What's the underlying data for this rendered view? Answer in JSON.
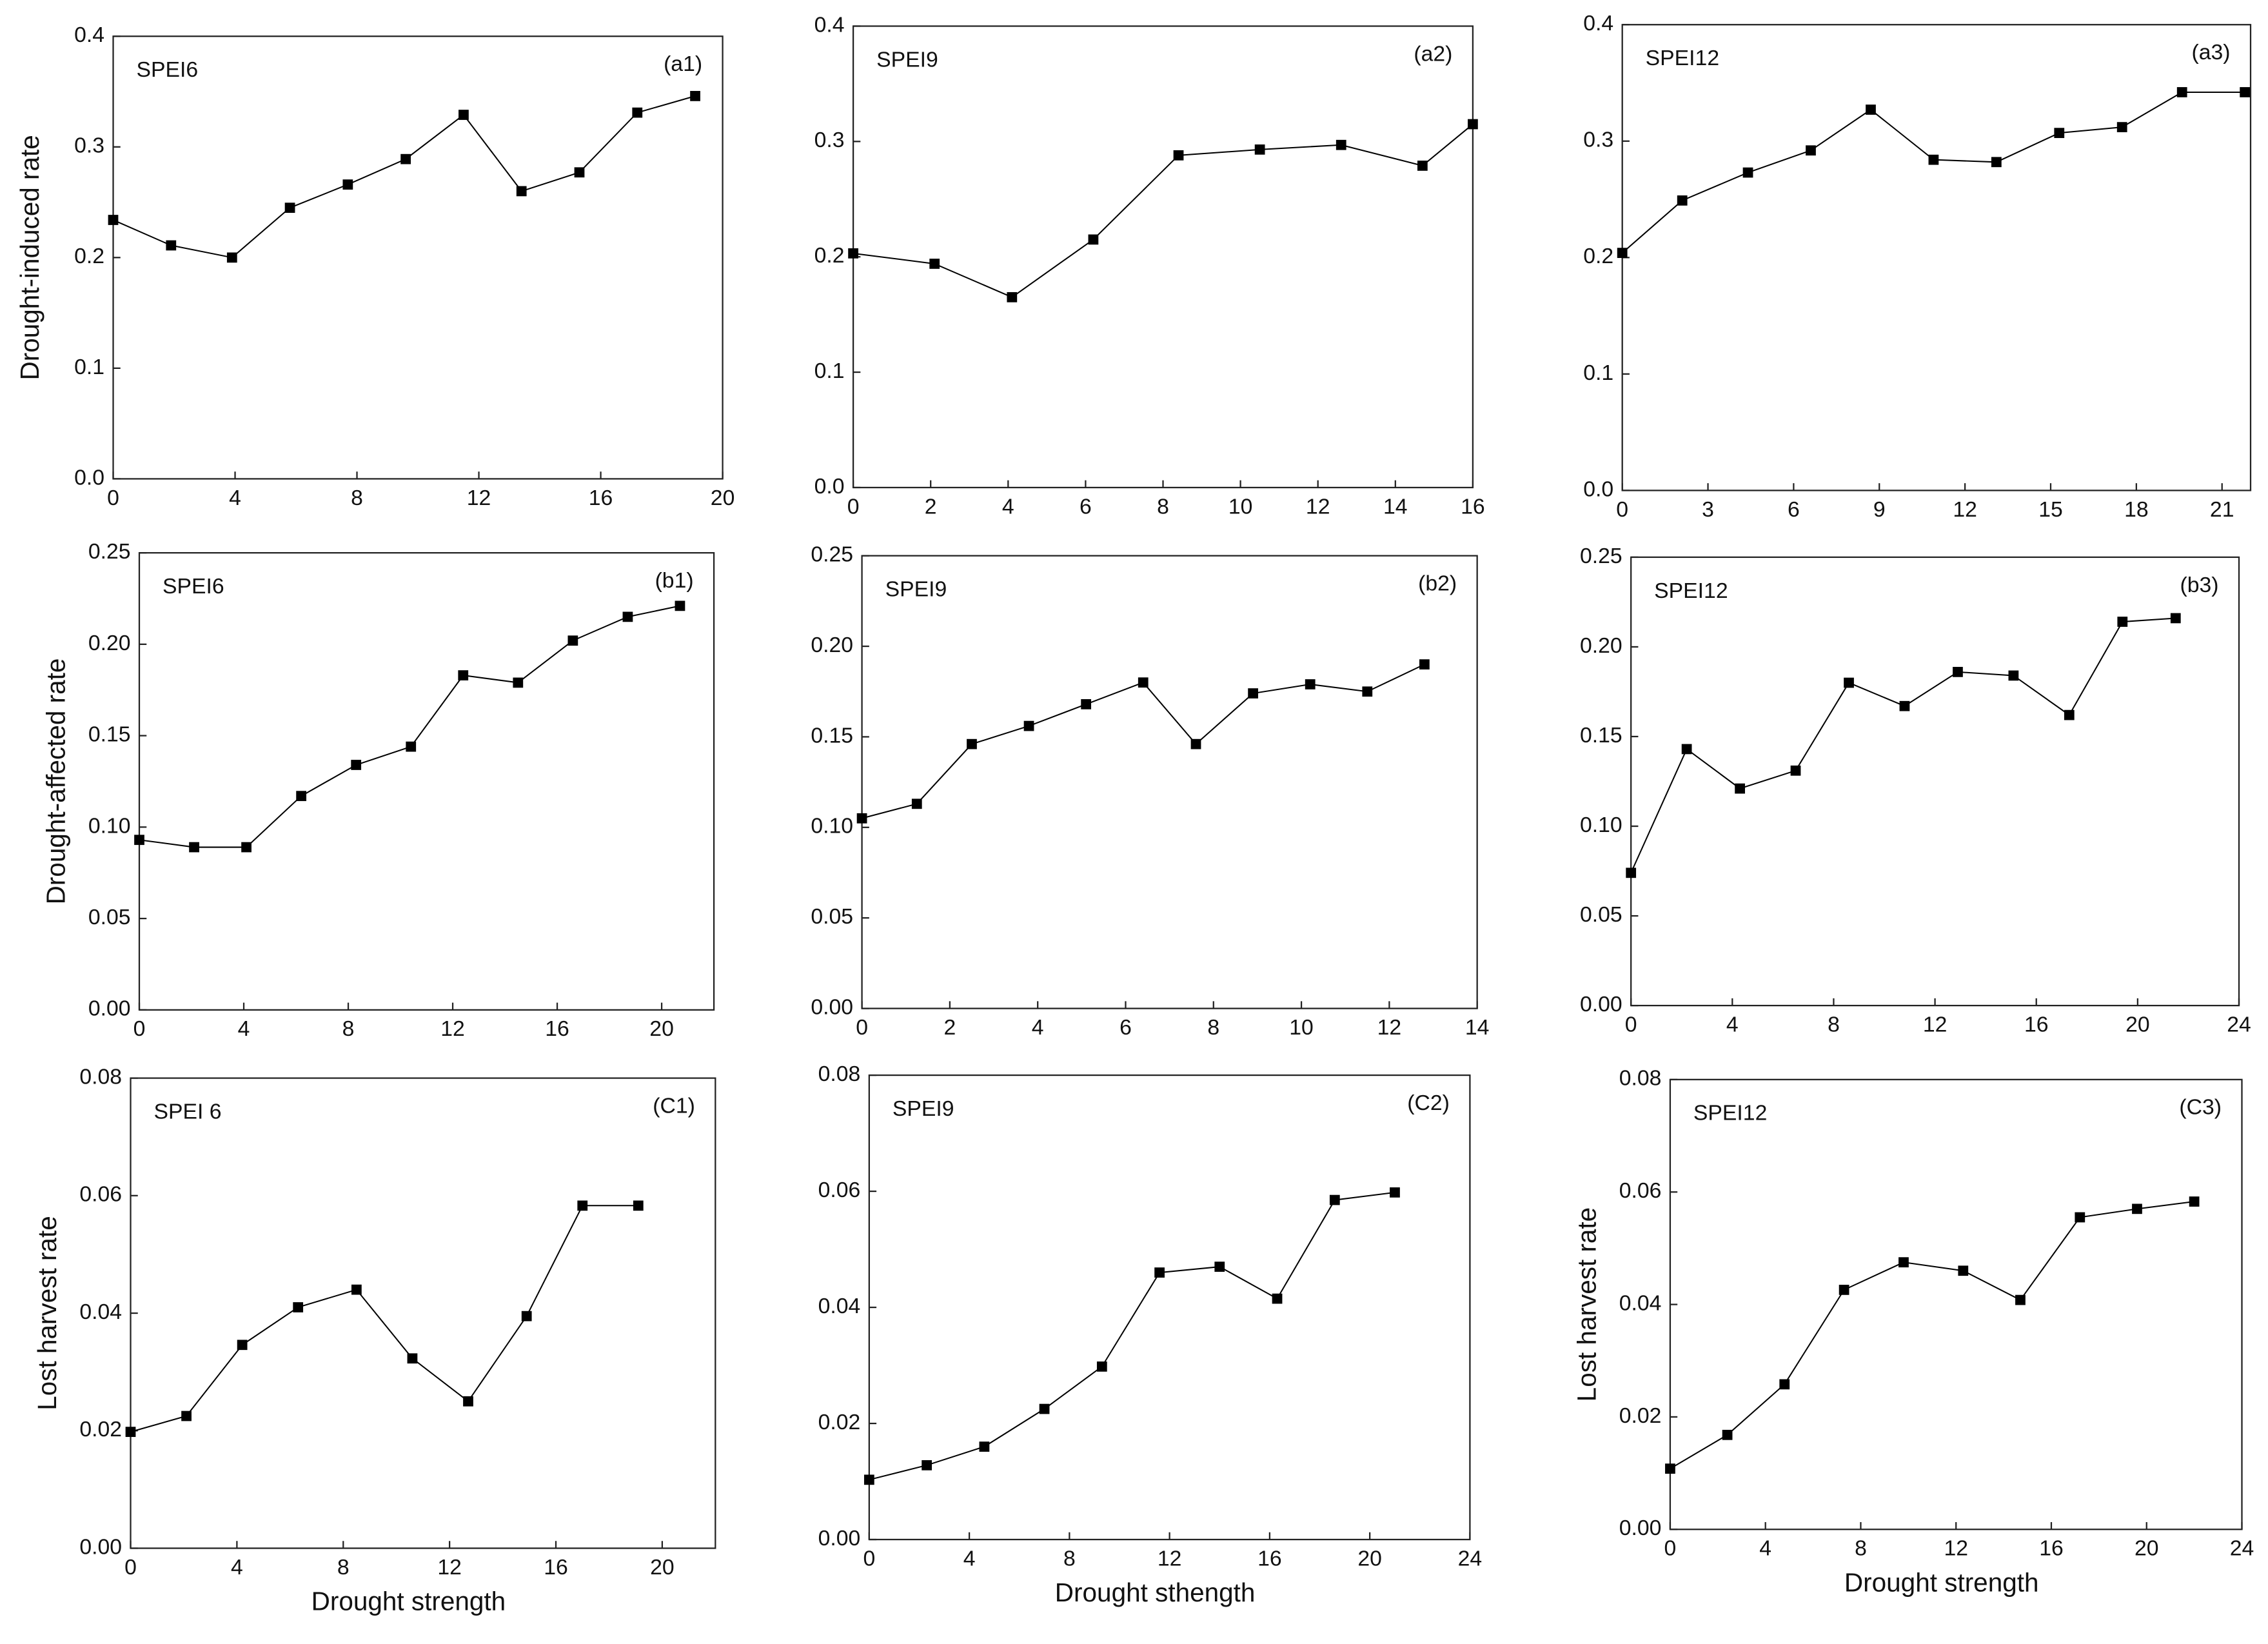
{
  "chart_data": [
    {
      "type": "line",
      "series_label": "SPEI6",
      "panel_label": "(a1)",
      "y_label": "Drought-induced rate",
      "x": [
        0,
        1.9,
        3.9,
        5.8,
        7.7,
        9.6,
        11.5,
        13.4,
        15.3,
        17.2,
        19.1
      ],
      "values": [
        0.234,
        0.211,
        0.2,
        0.245,
        0.266,
        0.289,
        0.329,
        0.26,
        0.277,
        0.331,
        0.346
      ],
      "color": "#000000",
      "xlim": [
        0,
        20
      ],
      "xticks": [
        0,
        4,
        8,
        12,
        16,
        20
      ],
      "ylim": [
        0,
        0.4
      ],
      "yticks": [
        {
          "value": 0,
          "label": "0.0"
        },
        0.1,
        0.2,
        0.3,
        0.4
      ]
    },
    {
      "type": "line",
      "series_label": "SPEI9",
      "panel_label": "(a2)",
      "x": [
        0,
        2.1,
        4.1,
        6.2,
        8.4,
        10.5,
        12.6,
        14.7,
        16
      ],
      "values": [
        0.203,
        0.194,
        0.165,
        0.215,
        0.288,
        0.293,
        0.297,
        0.279,
        0.315
      ],
      "color": "#000000",
      "xlim": [
        0,
        16
      ],
      "xticks": [
        0,
        2,
        4,
        6,
        8,
        10,
        12,
        14,
        16
      ],
      "ylim": [
        0,
        0.4
      ],
      "yticks": [
        {
          "value": 0,
          "label": "0.0"
        },
        0.1,
        0.2,
        0.3,
        0.4
      ]
    },
    {
      "type": "line",
      "series_label": "SPEI12",
      "panel_label": "(a3)",
      "x": [
        0,
        2.1,
        4.4,
        6.6,
        8.7,
        10.9,
        13.1,
        15.3,
        17.5,
        19.6,
        21.8
      ],
      "values": [
        0.204,
        0.249,
        0.273,
        0.292,
        0.327,
        0.284,
        0.282,
        0.307,
        0.312,
        0.342,
        0.342
      ],
      "color": "#000000",
      "xlim": [
        0,
        22
      ],
      "xticks": [
        0,
        3,
        6,
        9,
        12,
        15,
        18,
        21
      ],
      "ylim": [
        0,
        0.4
      ],
      "yticks": [
        {
          "value": 0,
          "label": "0.0"
        },
        0.1,
        0.2,
        0.3,
        0.4
      ]
    },
    {
      "type": "line",
      "series_label": "SPEI6",
      "panel_label": "(b1)",
      "y_label": "Drought-affected rate",
      "x": [
        0,
        2.1,
        4.1,
        6.2,
        8.3,
        10.4,
        12.4,
        14.5,
        16.6,
        18.7,
        20.7
      ],
      "values": [
        0.093,
        0.089,
        0.089,
        0.117,
        0.134,
        0.144,
        0.183,
        0.179,
        0.202,
        0.215,
        0.221
      ],
      "color": "#000000",
      "xlim": [
        0,
        22
      ],
      "xticks": [
        0,
        4,
        8,
        12,
        16,
        20
      ],
      "ylim": [
        0,
        0.25
      ],
      "yticks": [
        {
          "value": 0,
          "label": "0.00"
        },
        0.05,
        {
          "value": 0.1,
          "label": "0.10"
        },
        0.15,
        {
          "value": 0.2,
          "label": "0.20"
        },
        0.25
      ]
    },
    {
      "type": "line",
      "series_label": "SPEI9",
      "panel_label": "(b2)",
      "x": [
        0,
        1.25,
        2.5,
        3.8,
        5.1,
        6.4,
        7.6,
        8.9,
        10.2,
        11.5,
        12.8
      ],
      "values": [
        0.105,
        0.113,
        0.146,
        0.156,
        0.168,
        0.18,
        0.146,
        0.174,
        0.179,
        0.175,
        0.19
      ],
      "color": "#000000",
      "xlim": [
        0,
        14
      ],
      "xticks": [
        0,
        2,
        4,
        6,
        8,
        10,
        12,
        14
      ],
      "ylim": [
        0,
        0.25
      ],
      "yticks": [
        {
          "value": 0,
          "label": "0.00"
        },
        0.05,
        {
          "value": 0.1,
          "label": "0.10"
        },
        0.15,
        {
          "value": 0.2,
          "label": "0.20"
        },
        0.25
      ]
    },
    {
      "type": "line",
      "series_label": "SPEI12",
      "panel_label": "(b3)",
      "x": [
        0,
        2.2,
        4.3,
        6.5,
        8.6,
        10.8,
        12.9,
        15.1,
        17.3,
        19.4,
        21.5
      ],
      "values": [
        0.074,
        0.143,
        0.121,
        0.131,
        0.18,
        0.167,
        0.186,
        0.184,
        0.162,
        0.214,
        0.216
      ],
      "color": "#000000",
      "xlim": [
        0,
        24
      ],
      "xticks": [
        0,
        4,
        8,
        12,
        16,
        20,
        24
      ],
      "ylim": [
        0,
        0.25
      ],
      "yticks": [
        {
          "value": 0,
          "label": "0.00"
        },
        0.05,
        {
          "value": 0.1,
          "label": "0.10"
        },
        0.15,
        {
          "value": 0.2,
          "label": "0.20"
        },
        0.25
      ]
    },
    {
      "type": "line",
      "series_label": "SPEI 6",
      "panel_label": "(C1)",
      "y_label": "Lost harvest rate",
      "x_label": "Drought strength",
      "x": [
        0,
        2.1,
        4.2,
        6.3,
        8.5,
        10.6,
        12.7,
        14.9,
        17,
        19.1
      ],
      "values": [
        0.0198,
        0.0225,
        0.0346,
        0.041,
        0.044,
        0.0323,
        0.025,
        0.0395,
        0.0583,
        0.0583
      ],
      "color": "#000000",
      "xlim": [
        0,
        22
      ],
      "xticks": [
        0,
        4,
        8,
        12,
        16,
        20
      ],
      "ylim": [
        0,
        0.08
      ],
      "yticks": [
        {
          "value": 0,
          "label": "0.00"
        },
        0.02,
        0.04,
        0.06,
        0.08
      ]
    },
    {
      "type": "line",
      "series_label": "SPEI9",
      "panel_label": "(C2)",
      "x_label": "Drought sthength",
      "x": [
        0,
        2.3,
        4.6,
        7,
        9.3,
        11.6,
        14,
        16.3,
        18.6,
        21
      ],
      "values": [
        0.0103,
        0.0128,
        0.016,
        0.0225,
        0.0298,
        0.046,
        0.047,
        0.0415,
        0.0585,
        0.0598
      ],
      "color": "#000000",
      "xlim": [
        0,
        24
      ],
      "xticks": [
        0,
        4,
        8,
        12,
        16,
        20,
        24
      ],
      "ylim": [
        0,
        0.08
      ],
      "yticks": [
        {
          "value": 0,
          "label": "0.00"
        },
        0.02,
        0.04,
        0.06,
        0.08
      ]
    },
    {
      "type": "line",
      "series_label": "SPEI12",
      "panel_label": "(C3)",
      "y_label": "Lost harvest rate",
      "x_label": "Drought strength",
      "x": [
        0,
        2.4,
        4.8,
        7.3,
        9.8,
        12.3,
        14.7,
        17.2,
        19.6,
        22
      ],
      "values": [
        0.0108,
        0.0168,
        0.0258,
        0.0426,
        0.0475,
        0.046,
        0.0408,
        0.0555,
        0.057,
        0.0583
      ],
      "color": "#000000",
      "xlim": [
        0,
        24
      ],
      "xticks": [
        0,
        4,
        8,
        12,
        16,
        20,
        24
      ],
      "ylim": [
        0,
        0.08
      ],
      "yticks": [
        {
          "value": 0,
          "label": "0.00"
        },
        0.02,
        0.04,
        0.06,
        0.08
      ]
    }
  ]
}
